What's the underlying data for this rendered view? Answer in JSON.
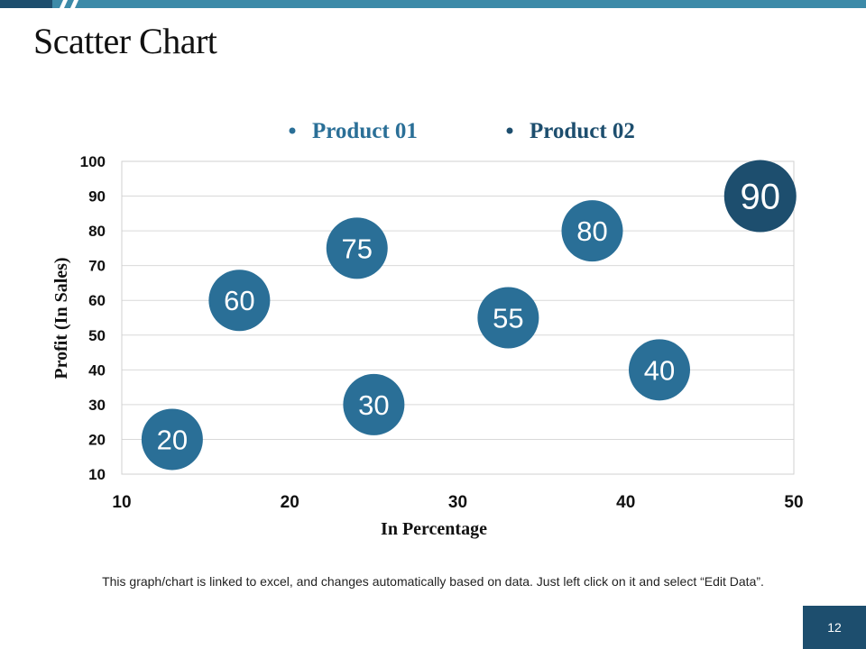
{
  "slide": {
    "title": "Scatter Chart",
    "footnote": "This graph/chart is linked to excel, and changes automatically based on data. Just left click on it and select “Edit Data”.",
    "page_number": "12"
  },
  "colors": {
    "accent": "#2a6f97",
    "accent_dark": "#1d4e6e",
    "bar_light": "#3c8aa8",
    "grid": "#d9d9d9",
    "axis_text": "#111111"
  },
  "chart_data": {
    "type": "scatter",
    "title": "",
    "xlabel": "In Percentage",
    "ylabel": "Profit  (In Sales)",
    "xlim": [
      10,
      50
    ],
    "ylim": [
      10,
      100
    ],
    "x_ticks": [
      10,
      20,
      30,
      40,
      50
    ],
    "y_ticks": [
      10,
      20,
      30,
      40,
      50,
      60,
      70,
      80,
      90,
      100
    ],
    "grid": true,
    "legend_position": "top-center",
    "series": [
      {
        "name": "Product 01",
        "color": "#2a6f97",
        "points": [
          {
            "x": 13,
            "y": 20,
            "label": "20"
          },
          {
            "x": 17,
            "y": 60,
            "label": "60"
          },
          {
            "x": 24,
            "y": 75,
            "label": "75"
          },
          {
            "x": 38,
            "y": 80,
            "label": "80"
          }
        ]
      },
      {
        "name": "Product 02",
        "color": "#2a6f97",
        "points": [
          {
            "x": 25,
            "y": 30,
            "label": "30"
          },
          {
            "x": 33,
            "y": 55,
            "label": "55"
          },
          {
            "x": 42,
            "y": 40,
            "label": "40"
          },
          {
            "x": 48,
            "y": 90,
            "label": "90"
          }
        ]
      }
    ]
  }
}
